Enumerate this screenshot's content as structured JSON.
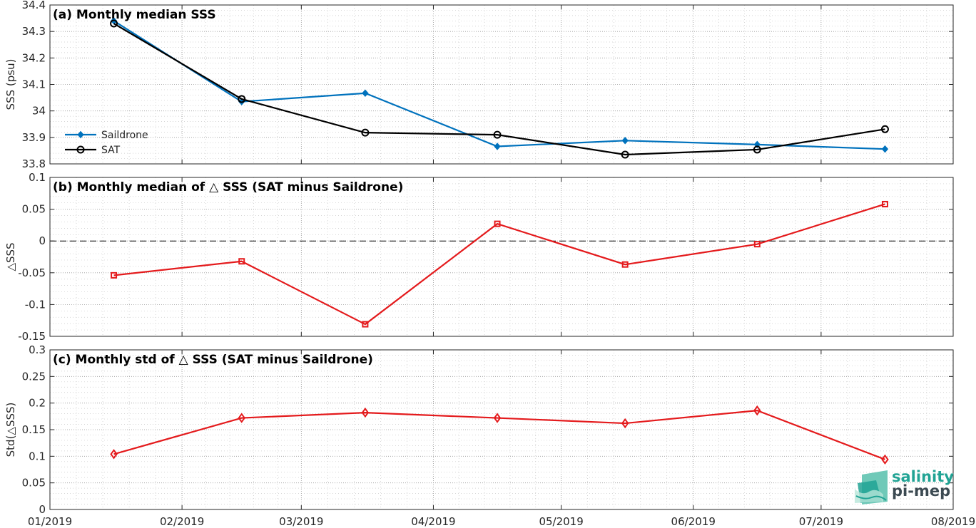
{
  "chart_data": [
    {
      "panel": "a",
      "type": "line",
      "title": "(a) Monthly median SSS",
      "ylabel": "SSS (psu)",
      "ylim": [
        33.8,
        34.4
      ],
      "yticks": [
        "33.8",
        "33.9",
        "34",
        "34.1",
        "34.2",
        "34.3",
        "34.4"
      ],
      "x": [
        "2019-01-16",
        "2019-02-15",
        "2019-03-16",
        "2019-04-16",
        "2019-05-16",
        "2019-06-16",
        "2019-07-16"
      ],
      "series": [
        {
          "name": "Saildrone",
          "color": "#0072bd",
          "marker": "diamond-filled",
          "values": [
            34.34,
            34.035,
            34.067,
            33.866,
            33.888,
            33.873,
            33.856
          ]
        },
        {
          "name": "SAT",
          "color": "#000000",
          "marker": "circle",
          "values": [
            34.33,
            34.045,
            33.918,
            33.91,
            33.835,
            33.854,
            33.931
          ]
        }
      ],
      "legend": "middle-left",
      "grid": true
    },
    {
      "panel": "b",
      "type": "line",
      "title": "(b) Monthly median of △ SSS (SAT minus Saildrone)",
      "ylabel": "△SSS",
      "ylim": [
        -0.15,
        0.1
      ],
      "yticks": [
        "-0.15",
        "-0.1",
        "-0.05",
        "0",
        "0.05",
        "0.1"
      ],
      "x": [
        "2019-01-16",
        "2019-02-15",
        "2019-03-16",
        "2019-04-16",
        "2019-05-16",
        "2019-06-16",
        "2019-07-16"
      ],
      "series": [
        {
          "color": "#e41a1c",
          "marker": "square",
          "values": [
            -0.054,
            -0.032,
            -0.131,
            0.027,
            -0.037,
            -0.005,
            0.058
          ]
        }
      ],
      "zero_line": true,
      "grid": true
    },
    {
      "panel": "c",
      "type": "line",
      "title": "(c) Monthly std of △ SSS (SAT minus Saildrone)",
      "ylabel": "Std(△SSS)",
      "ylim": [
        0,
        0.3
      ],
      "yticks": [
        "0",
        "0.05",
        "0.1",
        "0.15",
        "0.2",
        "0.25",
        "0.3"
      ],
      "x": [
        "2019-01-16",
        "2019-02-15",
        "2019-03-16",
        "2019-04-16",
        "2019-05-16",
        "2019-06-16",
        "2019-07-16"
      ],
      "series": [
        {
          "color": "#e41a1c",
          "marker": "diamond",
          "values": [
            0.104,
            0.172,
            0.182,
            0.172,
            0.162,
            0.186,
            0.094
          ]
        }
      ],
      "grid": true
    }
  ],
  "xaxis": {
    "range": [
      "2019-01-01",
      "2019-08-01"
    ],
    "ticks": [
      "2019-01-01",
      "2019-02-01",
      "2019-03-01",
      "2019-04-01",
      "2019-05-01",
      "2019-06-01",
      "2019-07-01",
      "2019-08-01"
    ],
    "tick_labels": [
      "01/2019",
      "02/2019",
      "03/2019",
      "04/2019",
      "05/2019",
      "06/2019",
      "07/2019",
      "08/2019"
    ]
  },
  "logo": {
    "line1": "salinity",
    "line2": "pi-mep",
    "colors": {
      "teal": "#21a394",
      "dark": "#3c4a52"
    }
  }
}
